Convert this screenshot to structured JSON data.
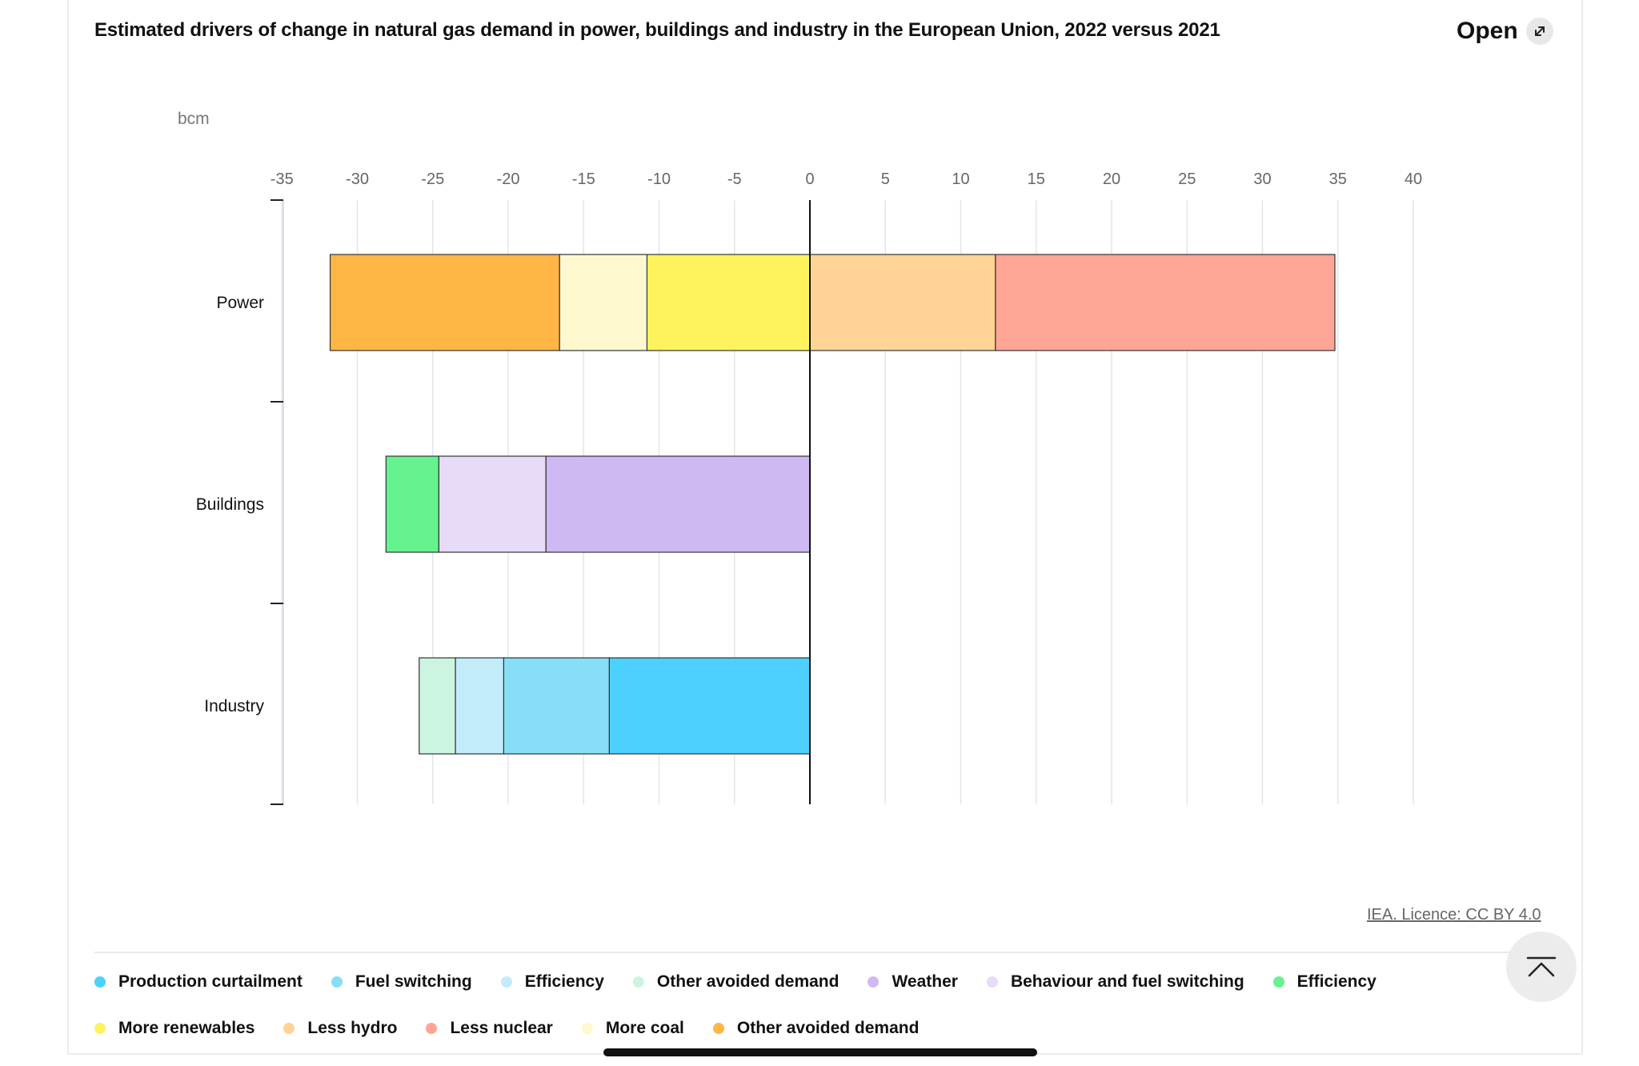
{
  "header": {
    "title": "Estimated drivers of change in natural gas demand in power, buildings and industry in the European Union, 2022 versus 2021",
    "open_label": "Open",
    "open_icon": "expand-arrow-icon"
  },
  "chart_data": {
    "type": "bar",
    "orientation": "horizontal",
    "stacked": true,
    "title": "Estimated drivers of change in natural gas demand in power, buildings and industry in the European Union, 2022 versus 2021",
    "unit": "bcm",
    "categories": [
      "Power",
      "Buildings",
      "Industry"
    ],
    "xlim": [
      -35,
      40
    ],
    "xticks": [
      -35,
      -30,
      -25,
      -20,
      -15,
      -10,
      -5,
      0,
      5,
      10,
      15,
      20,
      25,
      30,
      35,
      40
    ],
    "grid": true,
    "legend_position": "bottom",
    "series": [
      {
        "name": "Production curtailment",
        "color": "#4dd0fe",
        "category": "Industry",
        "value": -13.3
      },
      {
        "name": "Fuel switching",
        "color": "#86dff7",
        "category": "Industry",
        "value": -7.0
      },
      {
        "name": "Efficiency",
        "color": "#c3ecfa",
        "category": "Industry",
        "value": -3.2
      },
      {
        "name": "Other avoided demand",
        "color": "#ccf5e1",
        "category": "Industry",
        "value": -2.4
      },
      {
        "name": "Weather",
        "color": "#cfb9f3",
        "category": "Buildings",
        "value": -17.5
      },
      {
        "name": "Behaviour and fuel switching",
        "color": "#e7dbf8",
        "category": "Buildings",
        "value": -7.1
      },
      {
        "name": "Efficiency",
        "color": "#66f28f",
        "category": "Buildings",
        "value": -3.5
      },
      {
        "name": "More renewables",
        "color": "#fff35d",
        "category": "Power",
        "value": -10.8
      },
      {
        "name": "Less hydro",
        "color": "#ffd494",
        "category": "Power",
        "value": 12.3
      },
      {
        "name": "Less nuclear",
        "color": "#ffa595",
        "category": "Power",
        "value": 22.5
      },
      {
        "name": "More coal",
        "color": "#fff8cf",
        "category": "Power",
        "value": -5.8
      },
      {
        "name": "Other avoided demand",
        "color": "#ffb644",
        "category": "Power",
        "value": -15.2
      }
    ]
  },
  "footer": {
    "source": "IEA. Licence: CC BY 4.0",
    "back_to_top_icon": "chevron-up-icon"
  }
}
